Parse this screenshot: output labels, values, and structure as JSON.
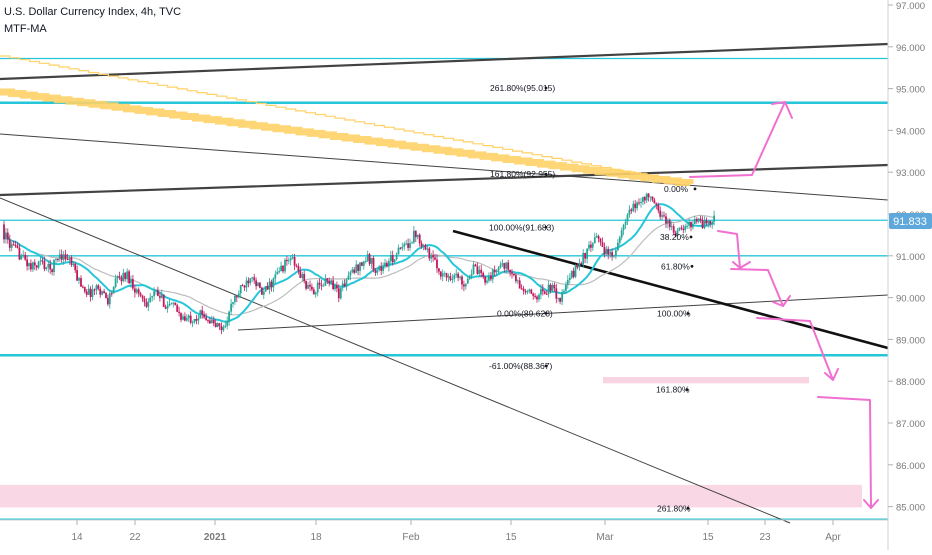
{
  "header": {
    "title": "U.S. Dollar Currency Index, 4h, TVC",
    "indicator": "MTF-MA"
  },
  "colors": {
    "candle_up": "#26a69a",
    "candle_down": "#c2185b",
    "ma_fast": "#26c6da",
    "ma_slow": "#bdbdbd",
    "horizontal_level": "#26c6da",
    "trendline_dark": "#424242",
    "trendline_black": "#111111",
    "mtf_ma_band": "#ffd166",
    "annotation_arrow": "#f06fd0",
    "zone_fill": "#f8c9dc",
    "price_badge": "#5fa8dc"
  },
  "chart_data": {
    "type": "candlestick",
    "symbol": "U.S. Dollar Currency Index",
    "timeframe": "4h",
    "source": "TVC",
    "ylim": [
      84.7,
      97.2
    ],
    "y_ticks": [
      "97.000",
      "96.000",
      "95.000",
      "94.000",
      "93.000",
      "92.000",
      "91.000",
      "90.000",
      "89.000",
      "88.000",
      "87.000",
      "86.000",
      "85.000"
    ],
    "x_ticks": [
      "14",
      "22",
      "2021",
      "18",
      "Feb",
      "15",
      "Mar",
      "15",
      "23",
      "Apr"
    ],
    "last_price": "91.833",
    "horizontal_levels": [
      95.72,
      94.66,
      91.85,
      91.0,
      88.62,
      84.7
    ],
    "fib_retracement_labels": [
      {
        "label": "261.80%(95.015)",
        "value": 95.015
      },
      {
        "label": "161.80%(92.955)",
        "value": 92.955
      },
      {
        "label": "100.00%(91.683)",
        "value": 91.683
      },
      {
        "label": "0.00%(89.623)",
        "value": 89.623
      },
      {
        "label": "-61.00%(88.367)",
        "value": 88.367
      }
    ],
    "fib_extension_labels": [
      {
        "label": "0.00%",
        "value": 92.6
      },
      {
        "label": "38.20%",
        "value": 91.45
      },
      {
        "label": "61.80%",
        "value": 90.75
      },
      {
        "label": "100.00%",
        "value": 89.62
      },
      {
        "label": "161.80%",
        "value": 87.8
      },
      {
        "label": "261.80%",
        "value": 84.96
      }
    ],
    "zones": [
      {
        "from": 87.95,
        "to": 88.1
      },
      {
        "from": 84.98,
        "to": 85.52
      }
    ],
    "close_path": [
      91.6,
      91.2,
      91.0,
      90.7,
      90.85,
      90.65,
      91.05,
      90.9,
      90.4,
      90.1,
      90.25,
      89.95,
      90.45,
      90.55,
      90.15,
      89.9,
      90.1,
      89.85,
      89.75,
      89.45,
      89.55,
      89.6,
      89.35,
      89.25,
      89.9,
      90.25,
      90.6,
      90.05,
      90.35,
      90.7,
      90.95,
      90.55,
      90.15,
      90.25,
      90.45,
      90.1,
      90.5,
      90.75,
      90.95,
      90.65,
      90.8,
      91.05,
      91.25,
      91.55,
      91.2,
      90.8,
      90.5,
      90.55,
      90.35,
      90.7,
      90.45,
      90.55,
      90.85,
      90.55,
      90.2,
      90.05,
      90.1,
      90.25,
      89.95,
      90.45,
      90.85,
      91.15,
      91.45,
      90.95,
      91.25,
      91.95,
      92.25,
      92.45,
      92.15,
      91.85,
      91.55,
      91.65,
      91.9,
      91.75,
      91.85
    ]
  }
}
